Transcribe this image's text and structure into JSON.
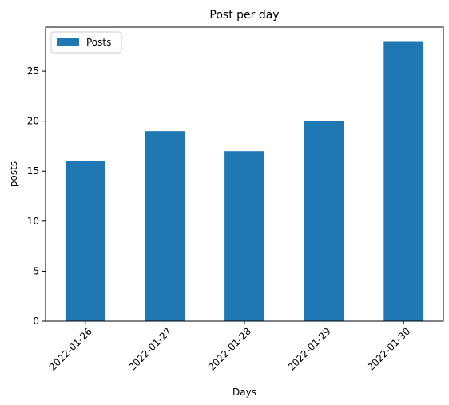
{
  "chart_data": {
    "type": "bar",
    "title": "Post per day",
    "xlabel": "Days",
    "ylabel": "posts",
    "categories": [
      "2022-01-26",
      "2022-01-27",
      "2022-01-28",
      "2022-01-29",
      "2022-01-30"
    ],
    "series": [
      {
        "name": "Posts",
        "values": [
          16,
          19,
          17,
          20,
          28
        ],
        "color": "#1f77b4"
      }
    ],
    "ylim": [
      0,
      29.4
    ],
    "yticks": [
      0,
      5,
      10,
      15,
      20,
      25
    ],
    "grid": false,
    "legend": "upper-left",
    "xtick_rotation": 45
  }
}
